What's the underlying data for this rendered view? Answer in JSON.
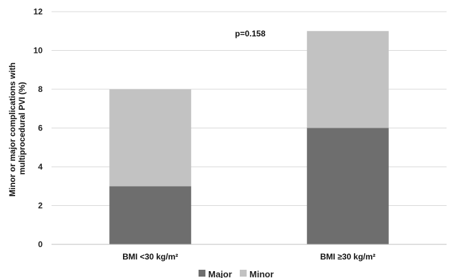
{
  "chart_data": {
    "type": "bar",
    "stacked": true,
    "categories": [
      "BMI <30 kg/m²",
      "BMI ≥30 kg/m²"
    ],
    "series": [
      {
        "name": "Major",
        "values": [
          3,
          6
        ],
        "color": "#6e6e6e"
      },
      {
        "name": "Minor",
        "values": [
          5,
          5
        ],
        "color": "#c2c2c2"
      }
    ],
    "ylabel_lines": [
      "Minor or major complications with",
      "multiprocedural PVI (%)"
    ],
    "yticks": [
      0,
      2,
      4,
      6,
      8,
      10,
      12
    ],
    "ylim": [
      0,
      12
    ],
    "grid": true,
    "legend": "bottom",
    "annotation": "p=0.158"
  }
}
